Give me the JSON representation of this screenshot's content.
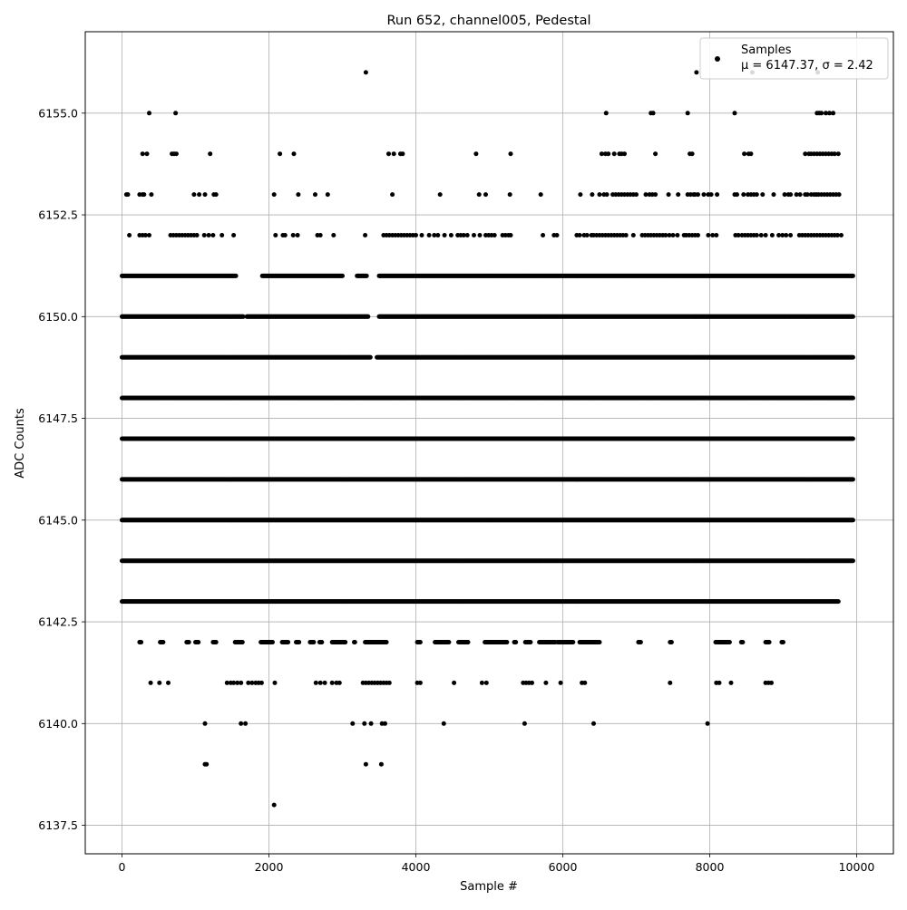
{
  "chart_data": {
    "type": "scatter",
    "title": "Run 652, channel005, Pedestal",
    "xlabel": "Sample #",
    "ylabel": "ADC Counts",
    "xlim": [
      -500,
      10500
    ],
    "ylim": [
      6136.8,
      6157.0
    ],
    "xticks": [
      0,
      2000,
      4000,
      6000,
      8000,
      10000
    ],
    "xtick_labels": [
      "0",
      "2000",
      "4000",
      "6000",
      "8000",
      "10000"
    ],
    "yticks": [
      6137.5,
      6140.0,
      6142.5,
      6145.0,
      6147.5,
      6150.0,
      6152.5,
      6155.0
    ],
    "ytick_labels": [
      "6137.5",
      "6140.0",
      "6142.5",
      "6145.0",
      "6147.5",
      "6150.0",
      "6152.5",
      "6155.0"
    ],
    "grid": true,
    "legend": {
      "position": "top-right",
      "entries": [
        "Samples"
      ],
      "stats_line": "μ = 6147.37, σ = 2.42"
    },
    "marker_color": "#000000",
    "n_samples": 10000,
    "series": [
      {
        "name": "Samples",
        "mean": 6147.37,
        "std": 2.42,
        "levels": [
          {
            "y": 6156,
            "x": [
              3320,
              7820,
              8580,
              9470
            ]
          },
          {
            "y": 6155,
            "x": [
              370,
              730,
              6590,
              7200,
              7230,
              7700,
              8340,
              9460,
              9490,
              9520,
              9580,
              9630,
              9680
            ]
          },
          {
            "y": 6154,
            "x": [
              280,
              340,
              680,
              710,
              740,
              1200,
              2150,
              2340,
              3630,
              3700,
              3790,
              3820,
              4820,
              5290,
              6530,
              6580,
              6620,
              6700,
              6770,
              6800,
              6840,
              7260,
              7730,
              7760,
              8470,
              8530,
              8560,
              9300,
              9350,
              9380,
              9420,
              9460,
              9500,
              9540,
              9580,
              9620,
              9660,
              9700,
              9750
            ]
          },
          {
            "y": 6153,
            "x": [
              60,
              80,
              240,
              280,
              300,
              400,
              980,
              1050,
              1130,
              1250,
              1280,
              2070,
              2400,
              2630,
              2800,
              3680,
              4330,
              4860,
              4950,
              5280,
              5700,
              6240,
              6400,
              6500,
              6560,
              6600,
              6680,
              6720,
              6760,
              6800,
              6840,
              6880,
              6920,
              6960,
              7000,
              7130,
              7180,
              7220,
              7260,
              7440,
              7570,
              7700,
              7740,
              7780,
              7800,
              7840,
              7920,
              7980,
              8020,
              8100,
              8340,
              8370,
              8460,
              8520,
              8560,
              8600,
              8640,
              8720,
              8870,
              9020,
              9070,
              9100,
              9180,
              9230,
              9300,
              9330,
              9380,
              9420,
              9450,
              9480,
              9520,
              9560,
              9600,
              9640,
              9680,
              9720,
              9760
            ]
          },
          {
            "y": 6152,
            "x": [
              100,
              240,
              280,
              320,
              370,
              660,
              700,
              740,
              780,
              820,
              860,
              900,
              940,
              980,
              1020,
              1120,
              1180,
              1240,
              1360,
              1520,
              2090,
              2190,
              2220,
              2330,
              2390,
              2660,
              2700,
              2880,
              3310,
              3560,
              3600,
              3640,
              3680,
              3720,
              3760,
              3800,
              3840,
              3880,
              3920,
              3960,
              4000,
              4080,
              4180,
              4250,
              4300,
              4390,
              4480,
              4570,
              4610,
              4650,
              4700,
              4790,
              4870,
              4950,
              4990,
              5030,
              5070,
              5180,
              5220,
              5260,
              5290,
              5730,
              5880,
              5920,
              6190,
              6230,
              6290,
              6330,
              6390,
              6420,
              6460,
              6500,
              6540,
              6580,
              6620,
              6660,
              6700,
              6740,
              6780,
              6820,
              6860,
              6960,
              7080,
              7120,
              7160,
              7200,
              7240,
              7280,
              7320,
              7360,
              7400,
              7450,
              7500,
              7560,
              7650,
              7680,
              7720,
              7760,
              7800,
              7840,
              7980,
              8040,
              8090,
              8350,
              8390,
              8440,
              8480,
              8520,
              8560,
              8600,
              8640,
              8700,
              8760,
              8850,
              8940,
              8990,
              9040,
              9100,
              9220,
              9260,
              9300,
              9340,
              9380,
              9420,
              9460,
              9500,
              9540,
              9580,
              9620,
              9660,
              9700,
              9740,
              9790
            ]
          },
          {
            "y": 6141,
            "x": [
              390,
              510,
              630,
              1430,
              1480,
              1520,
              1570,
              1620,
              1720,
              1770,
              1820,
              1860,
              1900,
              2080,
              2640,
              2700,
              2760,
              2860,
              2920,
              2960,
              3280,
              3320,
              3360,
              3400,
              3440,
              3480,
              3520,
              3560,
              3600,
              3640,
              4020,
              4060,
              4520,
              4900,
              4960,
              5460,
              5500,
              5540,
              5580,
              5770,
              5970,
              6260,
              6300,
              7460,
              8090,
              8130,
              8290,
              8760,
              8800,
              8840
            ]
          },
          {
            "y": 6140,
            "x": [
              1130,
              1620,
              1680,
              3140,
              3300,
              3390,
              3540,
              3580,
              4380,
              5480,
              6420,
              7970
            ]
          },
          {
            "y": 6139,
            "x": [
              1130,
              1150,
              3320,
              3530
            ]
          },
          {
            "y": 6138,
            "x": [
              2070
            ]
          }
        ],
        "dense_levels": [
          {
            "y": 6151,
            "x_ranges": [
              [
                0,
                1550
              ],
              [
                1910,
                3000
              ],
              [
                3200,
                3330
              ],
              [
                3500,
                9950
              ]
            ]
          },
          {
            "y": 6150,
            "x_ranges": [
              [
                0,
                1650
              ],
              [
                1700,
                3350
              ],
              [
                3500,
                9950
              ]
            ]
          },
          {
            "y": 6149,
            "x_ranges": [
              [
                0,
                3380
              ],
              [
                3470,
                9950
              ]
            ]
          },
          {
            "y": 6148,
            "x_ranges": [
              [
                0,
                9950
              ]
            ]
          },
          {
            "y": 6147,
            "x_ranges": [
              [
                0,
                9950
              ]
            ]
          },
          {
            "y": 6146,
            "x_ranges": [
              [
                0,
                9950
              ]
            ]
          },
          {
            "y": 6145,
            "x_ranges": [
              [
                0,
                9950
              ]
            ]
          },
          {
            "y": 6144,
            "x_ranges": [
              [
                0,
                9950
              ]
            ]
          },
          {
            "y": 6143,
            "x_ranges": [
              [
                0,
                9750
              ]
            ]
          },
          {
            "y": 6142,
            "x_ranges": [
              [
                240,
                260
              ],
              [
                520,
                560
              ],
              [
                880,
                910
              ],
              [
                1000,
                1040
              ],
              [
                1240,
                1280
              ],
              [
                1540,
                1640
              ],
              [
                1890,
                2050
              ],
              [
                2180,
                2260
              ],
              [
                2370,
                2410
              ],
              [
                2560,
                2610
              ],
              [
                2690,
                2720
              ],
              [
                2860,
                3040
              ],
              [
                3160,
                3170
              ],
              [
                3310,
                3600
              ],
              [
                4020,
                4060
              ],
              [
                4260,
                4450
              ],
              [
                4580,
                4710
              ],
              [
                4940,
                5240
              ],
              [
                5340,
                5360
              ],
              [
                5490,
                5560
              ],
              [
                5680,
                5900
              ],
              [
                5930,
                6140
              ],
              [
                6230,
                6500
              ],
              [
                7030,
                7060
              ],
              [
                7460,
                7480
              ],
              [
                8080,
                8270
              ],
              [
                8430,
                8450
              ],
              [
                8760,
                8810
              ],
              [
                8980,
                9000
              ]
            ]
          }
        ]
      }
    ]
  }
}
